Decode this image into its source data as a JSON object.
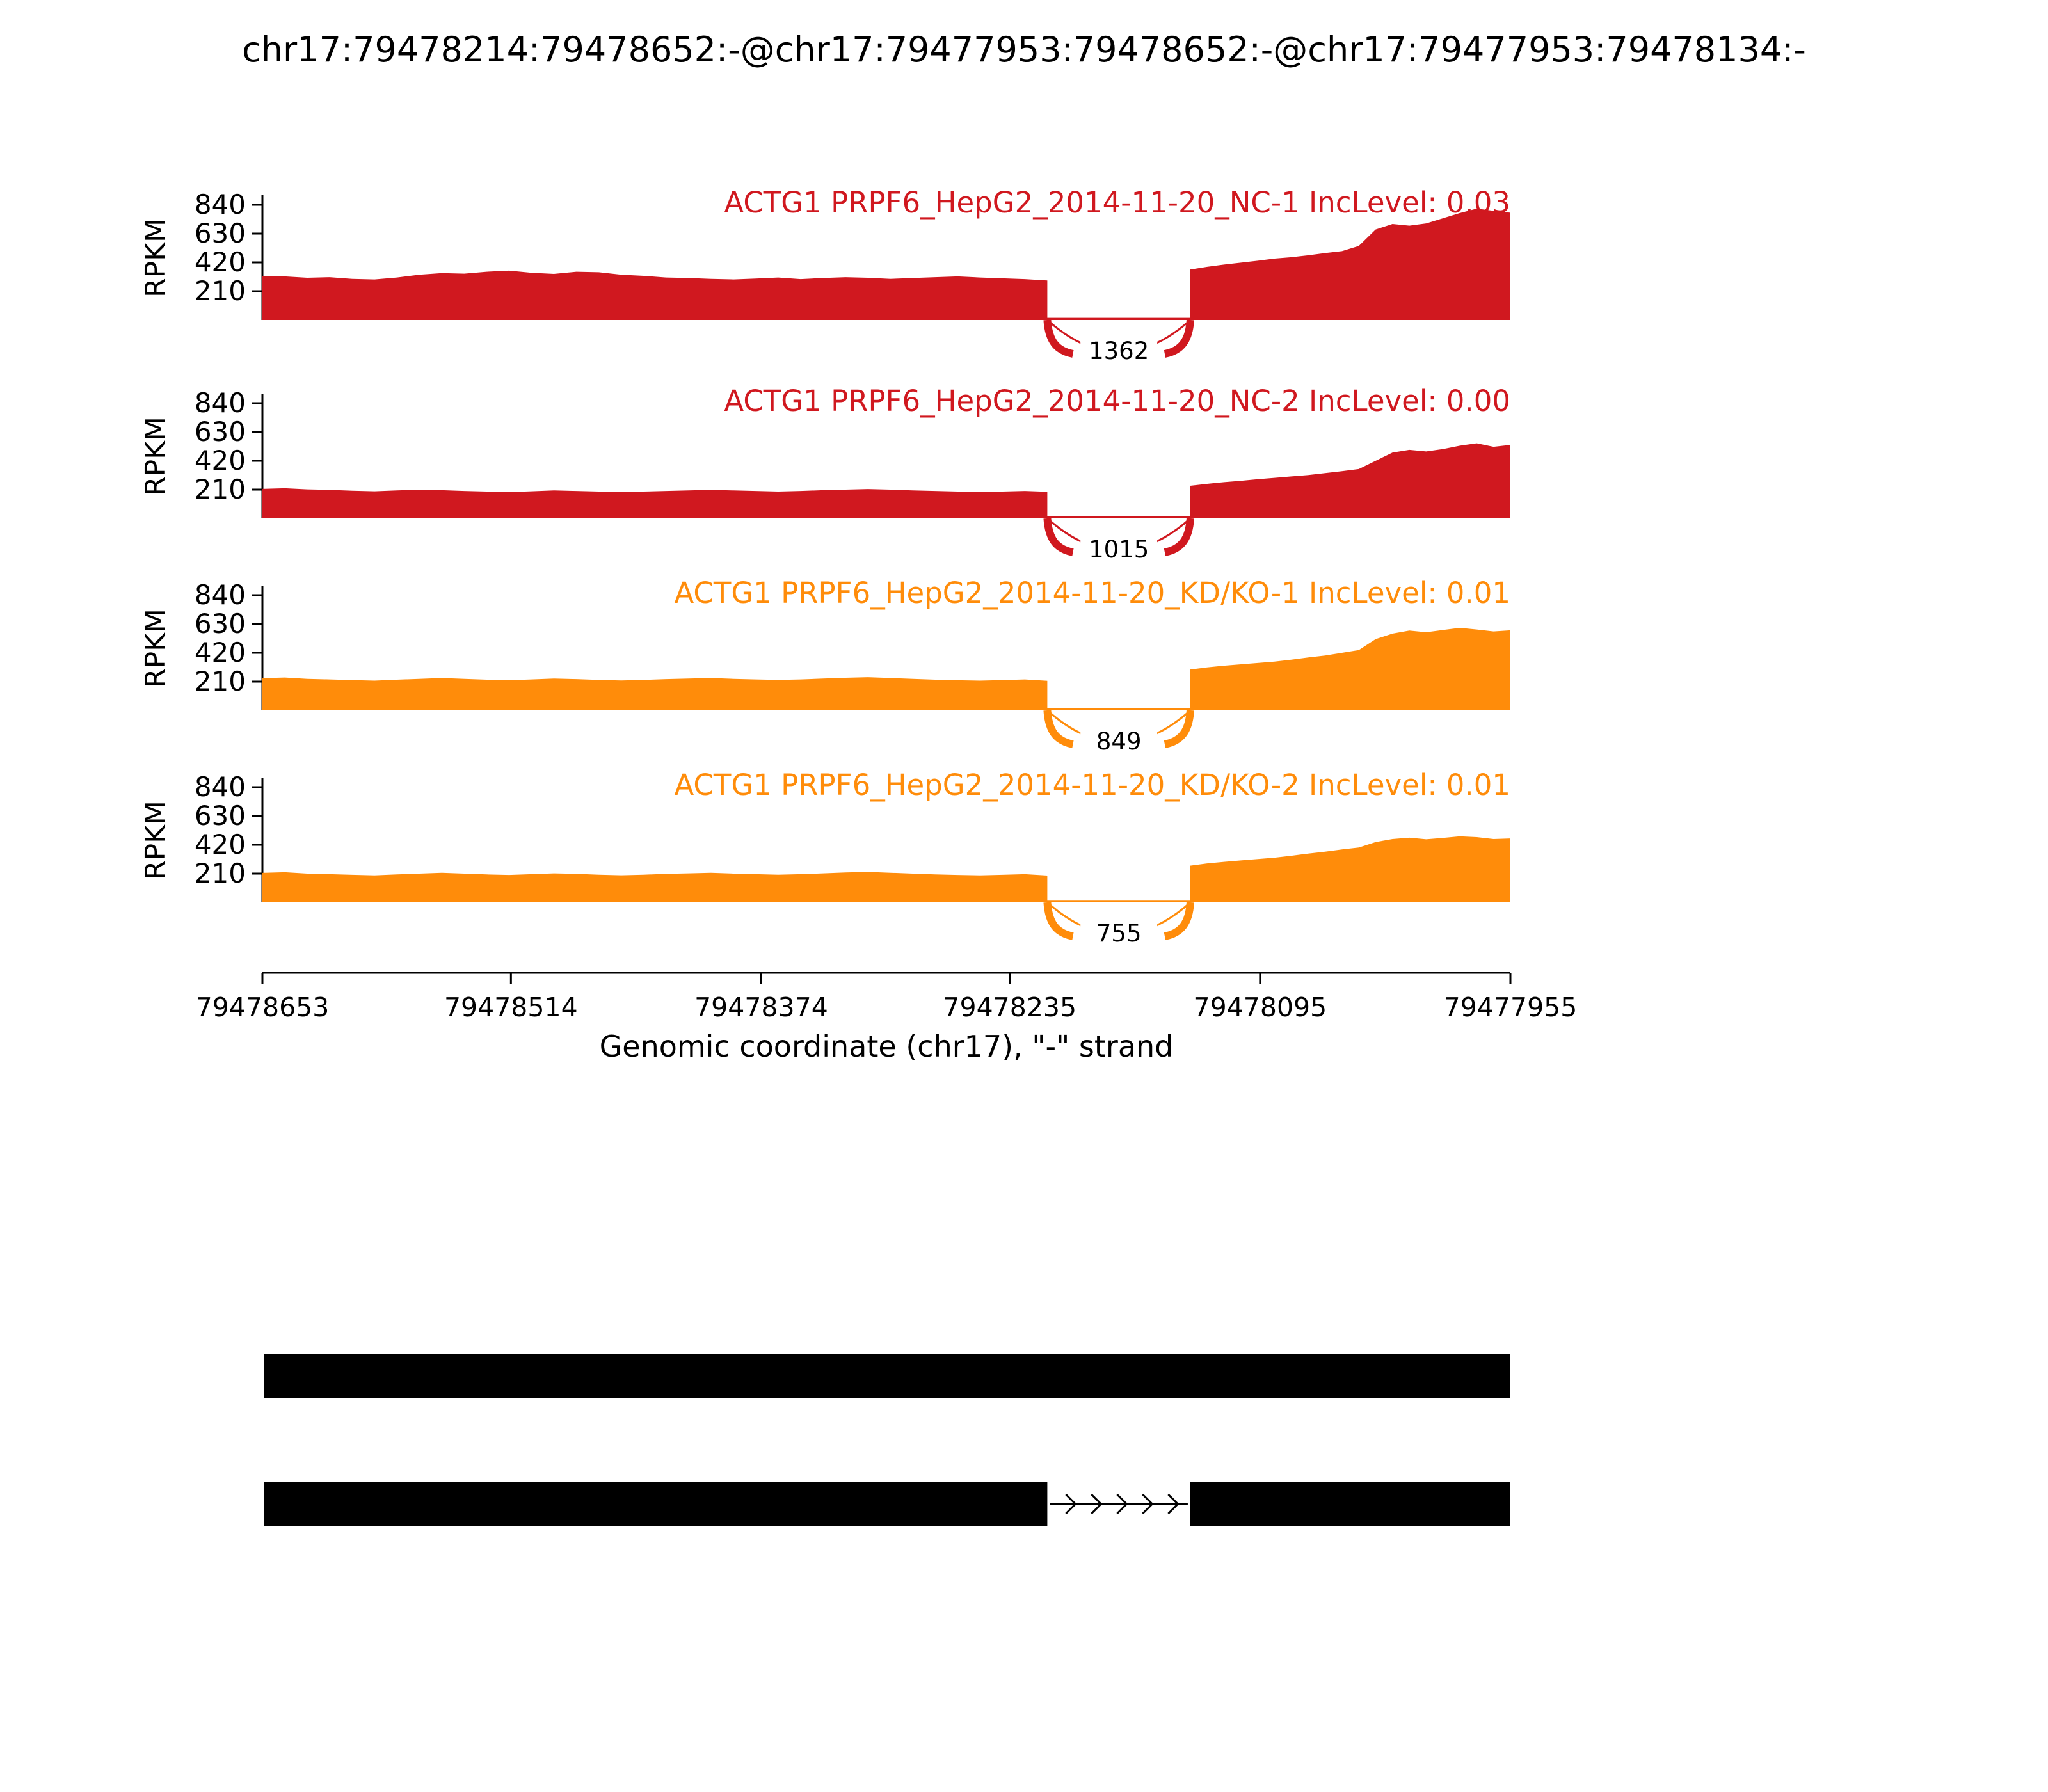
{
  "chart_data": {
    "type": "area",
    "title": "chr17:79478214:79478652:-@chr17:79477953:79478652:-@chr17:79477953:79478134:-",
    "xlabel": "Genomic coordinate (chr17), \"-\" strand",
    "ylabel": "RPKM",
    "x_axis": {
      "start": 79478653,
      "end": 79477955,
      "ticks": [
        79478653,
        79478514,
        79478374,
        79478235,
        79478095,
        79477955
      ]
    },
    "y_ticks": [
      210,
      420,
      630,
      840
    ],
    "y_max": 910,
    "region": {
      "intron_start": 79478214,
      "intron_end": 79478134
    },
    "colors": {
      "nc": "#d0181f",
      "kdko": "#ff8c0a",
      "annotation": "#000000"
    },
    "tracks": [
      {
        "label": "ACTG1 PRPF6_HepG2_2014-11-20_NC-1 IncLevel: 0.03",
        "inc_level": "0.03",
        "color": "#d0181f",
        "junction_count": 1362,
        "intron_level": 16,
        "left_exon": [
          320,
          318,
          308,
          312,
          300,
          296,
          310,
          330,
          342,
          338,
          352,
          360,
          344,
          336,
          352,
          348,
          330,
          322,
          310,
          306,
          300,
          296,
          302,
          310,
          298,
          306,
          312,
          308,
          300,
          306,
          312,
          318,
          310,
          304,
          298,
          288
        ],
        "right_exon": [
          368,
          388,
          404,
          418,
          432,
          448,
          458,
          472,
          488,
          502,
          540,
          660,
          700,
          688,
          704,
          742,
          780,
          812,
          796,
          782
        ]
      },
      {
        "label": "ACTG1 PRPF6_HepG2_2014-11-20_NC-2 IncLevel: 0.00",
        "inc_level": "0.00",
        "color": "#d0181f",
        "junction_count": 1015,
        "intron_level": 14,
        "left_exon": [
          215,
          220,
          212,
          208,
          202,
          198,
          204,
          210,
          206,
          200,
          196,
          192,
          198,
          204,
          200,
          196,
          193,
          196,
          200,
          204,
          208,
          204,
          200,
          196,
          200,
          206,
          210,
          214,
          210,
          204,
          200,
          196,
          193,
          196,
          200,
          194
        ],
        "right_exon": [
          238,
          252,
          264,
          274,
          286,
          296,
          306,
          316,
          330,
          344,
          360,
          420,
          480,
          500,
          488,
          506,
          530,
          548,
          522,
          536
        ]
      },
      {
        "label": "ACTG1 PRPF6_HepG2_2014-11-20_KD/KO-1 IncLevel: 0.01",
        "inc_level": "0.01",
        "color": "#ff8c0a",
        "junction_count": 849,
        "intron_level": 14,
        "left_exon": [
          235,
          240,
          230,
          226,
          221,
          217,
          224,
          230,
          236,
          230,
          224,
          220,
          226,
          232,
          228,
          222,
          218,
          222,
          228,
          232,
          236,
          230,
          226,
          222,
          226,
          232,
          238,
          242,
          236,
          230,
          224,
          220,
          217,
          221,
          226,
          216
        ],
        "right_exon": [
          298,
          314,
          326,
          336,
          346,
          356,
          370,
          386,
          400,
          420,
          440,
          520,
          560,
          582,
          570,
          586,
          602,
          590,
          576,
          584
        ]
      },
      {
        "label": "ACTG1 PRPF6_HepG2_2014-11-20_KD/KO-2 IncLevel: 0.01",
        "inc_level": "0.01",
        "color": "#ff8c0a",
        "junction_count": 755,
        "intron_level": 13,
        "left_exon": [
          215,
          220,
          210,
          206,
          201,
          197,
          204,
          210,
          216,
          210,
          204,
          200,
          206,
          212,
          208,
          202,
          198,
          202,
          208,
          212,
          216,
          210,
          206,
          202,
          206,
          212,
          218,
          222,
          216,
          210,
          204,
          200,
          197,
          201,
          206,
          196
        ],
        "right_exon": [
          268,
          284,
          296,
          306,
          316,
          326,
          340,
          356,
          370,
          386,
          400,
          440,
          462,
          472,
          460,
          470,
          482,
          476,
          462,
          466
        ]
      }
    ],
    "annotation": {
      "bars": [
        {
          "exons": [
            [
              79478652,
              79477953
            ]
          ]
        },
        {
          "exons": [
            [
              79478652,
              79478214
            ],
            [
              79478134,
              79477953
            ]
          ],
          "intron_arrows": [
            79478214,
            79478134
          ]
        }
      ]
    }
  }
}
